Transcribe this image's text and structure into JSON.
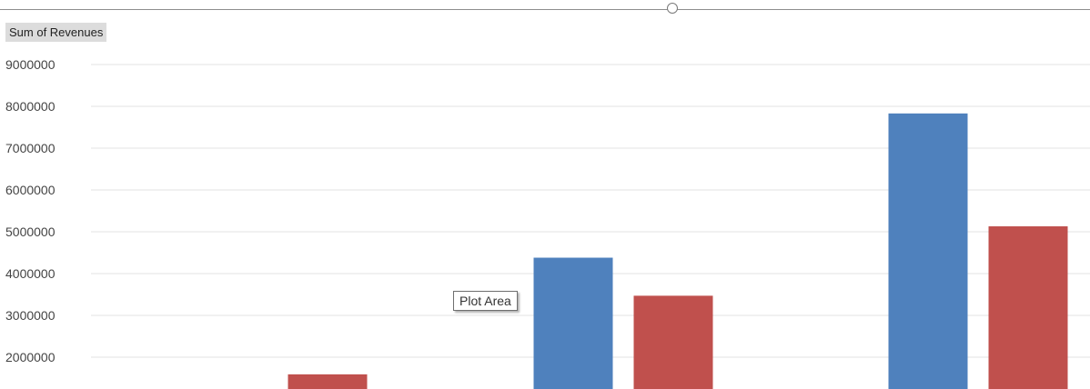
{
  "field_button": {
    "label": "Sum of Revenues"
  },
  "tooltip": {
    "label": "Plot Area"
  },
  "icons": {
    "resize_handle": "circle-handle-icon"
  },
  "chart_data": {
    "type": "bar",
    "title": "",
    "xlabel": "",
    "ylabel": "",
    "ylim": [
      1000000,
      9000000
    ],
    "yticks": [
      "2000000",
      "3000000",
      "4000000",
      "5000000",
      "6000000",
      "7000000",
      "8000000",
      "9000000"
    ],
    "categories": [
      "",
      "",
      ""
    ],
    "series": [
      {
        "color": "#4f81bd",
        "values": [
          null,
          4380000,
          7830000
        ]
      },
      {
        "color": "#c0504d",
        "values": [
          1590000,
          3470000,
          5130000
        ]
      }
    ],
    "grid": true,
    "legend": "none"
  }
}
